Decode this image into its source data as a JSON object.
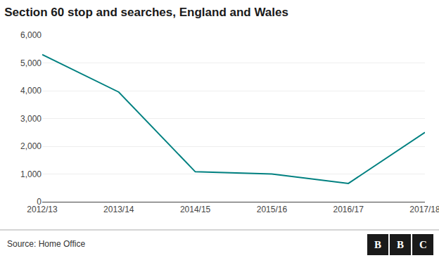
{
  "chart_data": {
    "type": "line",
    "title": "Section 60 stop and searches, England and Wales",
    "categories": [
      "2012/13",
      "2013/14",
      "2014/15",
      "2015/16",
      "2016/17",
      "2017/18"
    ],
    "values": [
      5300,
      3950,
      1080,
      1000,
      660,
      2500
    ],
    "color": "#008080",
    "ylim": [
      0,
      6000
    ],
    "yticks": [
      0,
      {
        "value": 1000,
        "label": "1,000"
      },
      {
        "value": 2000,
        "label": "2,000"
      },
      {
        "value": 3000,
        "label": "3,000"
      },
      {
        "value": 4000,
        "label": "4,000"
      },
      {
        "value": 5000,
        "label": "5,000"
      },
      {
        "value": 6000,
        "label": "6,000"
      }
    ],
    "grid": true,
    "annotations": [
      "Source: Home Office",
      "B",
      "B",
      "C"
    ]
  }
}
